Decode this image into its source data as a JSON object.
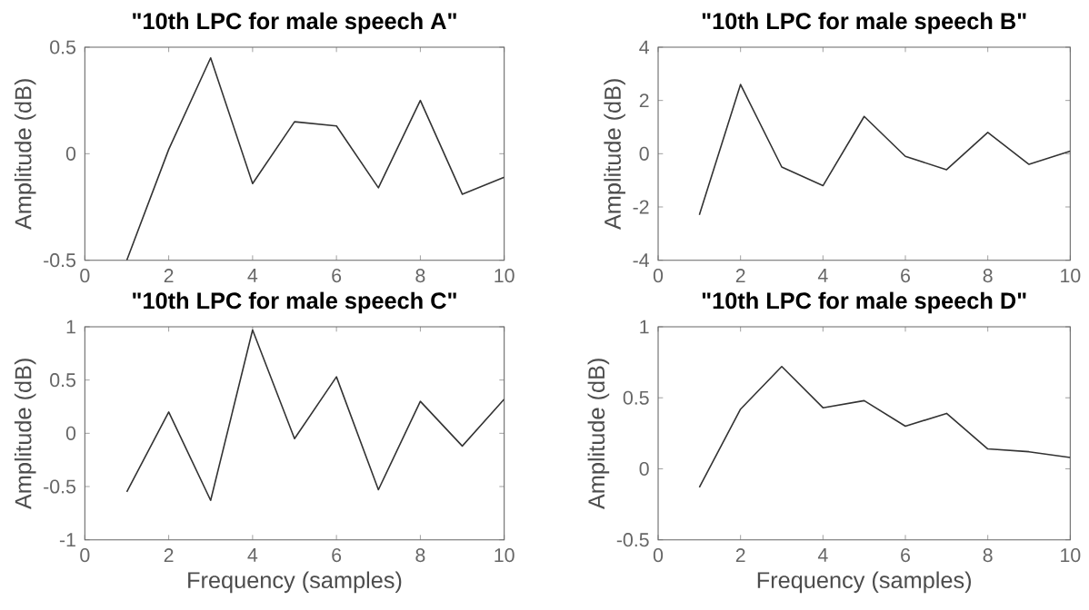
{
  "chart_data": [
    {
      "type": "line",
      "title": "\"10th LPC for male speech A\"",
      "ylabel": "Amplitude (dB)",
      "color": "#333333",
      "x": [
        1,
        2,
        3,
        4,
        5,
        6,
        7,
        8,
        9,
        10
      ],
      "values": [
        -0.5,
        0.02,
        0.45,
        -0.14,
        0.15,
        0.13,
        -0.16,
        0.25,
        -0.19,
        -0.11
      ],
      "xlim": [
        0,
        10
      ],
      "ylim": [
        -0.5,
        0.5
      ],
      "xticks": [
        0,
        2,
        4,
        6,
        8,
        10
      ],
      "yticks": [
        -0.5,
        0,
        0.5
      ]
    },
    {
      "type": "line",
      "title": "\"10th LPC for male speech B\"",
      "ylabel": "Amplitude (dB)",
      "color": "#333333",
      "x": [
        1,
        2,
        3,
        4,
        5,
        6,
        7,
        8,
        9,
        10
      ],
      "values": [
        -2.3,
        2.6,
        -0.5,
        -1.2,
        1.4,
        -0.1,
        -0.6,
        0.8,
        -0.4,
        0.1
      ],
      "xlim": [
        0,
        10
      ],
      "ylim": [
        -4,
        4
      ],
      "xticks": [
        0,
        2,
        4,
        6,
        8,
        10
      ],
      "yticks": [
        -4,
        -2,
        0,
        2,
        4
      ]
    },
    {
      "type": "line",
      "title": "\"10th LPC for male speech C\"",
      "xlabel": "Frequency (samples)",
      "ylabel": "Amplitude (dB)",
      "color": "#333333",
      "x": [
        1,
        2,
        3,
        4,
        5,
        6,
        7,
        8,
        9,
        10
      ],
      "values": [
        -0.55,
        0.2,
        -0.63,
        0.97,
        -0.05,
        0.53,
        -0.53,
        0.3,
        -0.12,
        0.32
      ],
      "xlim": [
        0,
        10
      ],
      "ylim": [
        -1,
        1
      ],
      "xticks": [
        0,
        2,
        4,
        6,
        8,
        10
      ],
      "yticks": [
        -1,
        -0.5,
        0,
        0.5,
        1
      ]
    },
    {
      "type": "line",
      "title": "\"10th LPC for male speech D\"",
      "xlabel": "Frequency (samples)",
      "ylabel": "Amplitude (dB)",
      "color": "#333333",
      "x": [
        1,
        2,
        3,
        4,
        5,
        6,
        7,
        8,
        9,
        10
      ],
      "values": [
        -0.13,
        0.42,
        0.72,
        0.43,
        0.48,
        0.3,
        0.39,
        0.14,
        0.12,
        0.08
      ],
      "xlim": [
        0,
        10
      ],
      "ylim": [
        -0.5,
        1
      ],
      "xticks": [
        0,
        2,
        4,
        6,
        8,
        10
      ],
      "yticks": [
        -0.5,
        0,
        0.5,
        1
      ]
    }
  ]
}
